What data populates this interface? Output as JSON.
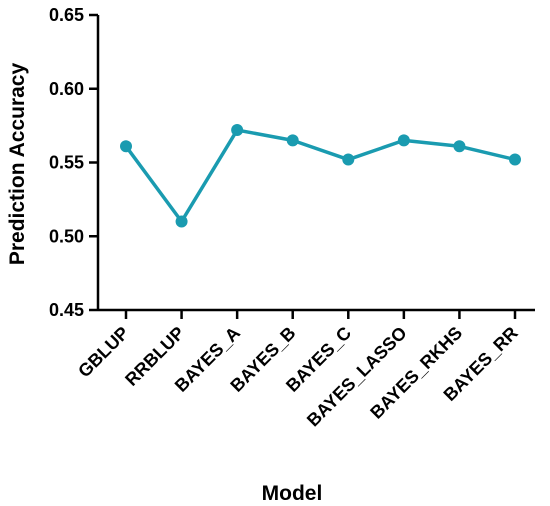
{
  "chart_data": {
    "type": "line",
    "title": "",
    "xlabel": "Model",
    "ylabel": "Prediction Accuracy",
    "categories": [
      "GBLUP",
      "RRBLUP",
      "BAYES_A",
      "BAYES_B",
      "BAYES_C",
      "BAYES_LASSO",
      "BAYES_RKHS",
      "BAYES_RR"
    ],
    "series": [
      {
        "values": [
          0.561,
          0.51,
          0.572,
          0.565,
          0.552,
          0.565,
          0.561,
          0.552
        ]
      }
    ],
    "ylim": [
      0.45,
      0.65
    ],
    "yticks": [
      "0.45",
      "0.50",
      "0.55",
      "0.60",
      "0.65"
    ],
    "grid": false,
    "legend": "none",
    "colors": {
      "line": "#1a9bb0",
      "axis": "#000000",
      "background": "#ffffff"
    }
  }
}
